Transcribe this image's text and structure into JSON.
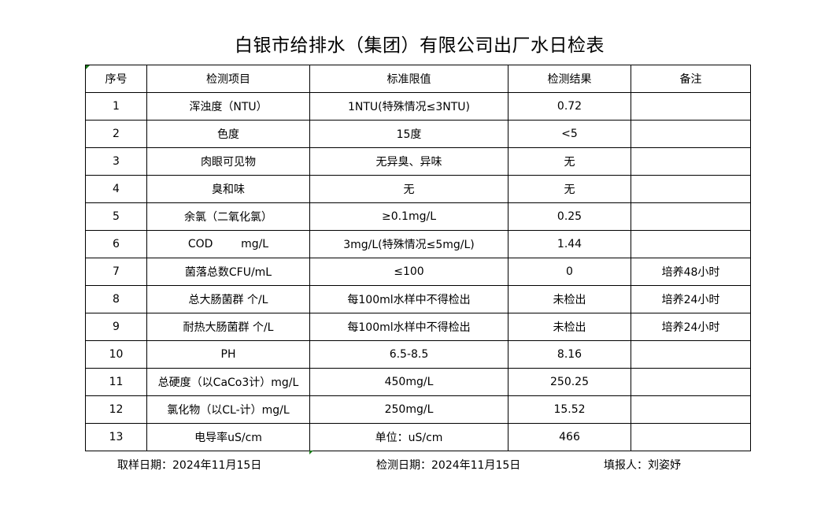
{
  "title": "白银市给排水（集团）有限公司出厂水日检表",
  "headers": [
    "序号",
    "检测项目",
    "标准限值",
    "检测结果",
    "备注"
  ],
  "rows": [
    [
      "1",
      "浑浊度（NTU）",
      "1NTU(特殊情况≤3NTU)",
      "0.72",
      ""
    ],
    [
      "2",
      "色度",
      "15度",
      "<5",
      ""
    ],
    [
      "3",
      "肉眼可见物",
      "无异臭、异味",
      "无",
      ""
    ],
    [
      "4",
      "臭和味",
      "无",
      "无",
      ""
    ],
    [
      "5",
      "余氯（二氧化氯）",
      "≥0.1mg/L",
      "0.25",
      ""
    ],
    [
      "6",
      "COD        mg/L",
      "3mg/L(特殊情况≤5mg/L)",
      "1.44",
      ""
    ],
    [
      "7",
      "菌落总数CFU/mL",
      "≤100",
      "0",
      "培养48小时"
    ],
    [
      "8",
      "总大肠菌群 个/L",
      "每100ml水样中不得检出",
      "未检出",
      "培养24小时"
    ],
    [
      "9",
      "耐热大肠菌群 个/L",
      "每100ml水样中不得检出",
      "未检出",
      "培养24小时"
    ],
    [
      "10",
      "PH",
      "6.5-8.5",
      "8.16",
      ""
    ],
    [
      "11",
      "总硬度（以CaCo3计）mg/L",
      "450mg/L",
      "250.25",
      ""
    ],
    [
      "12",
      "氯化物（以CL-计）mg/L",
      "250mg/L",
      "15.52",
      ""
    ],
    [
      "13",
      "电导率uS/cm",
      "单位：uS/cm",
      "466",
      ""
    ]
  ],
  "footer": {
    "sample_date": "取样日期：2024年11月15日",
    "test_date": "检测日期：2024年11月15日",
    "reporter": "填报人：刘姿妤"
  }
}
